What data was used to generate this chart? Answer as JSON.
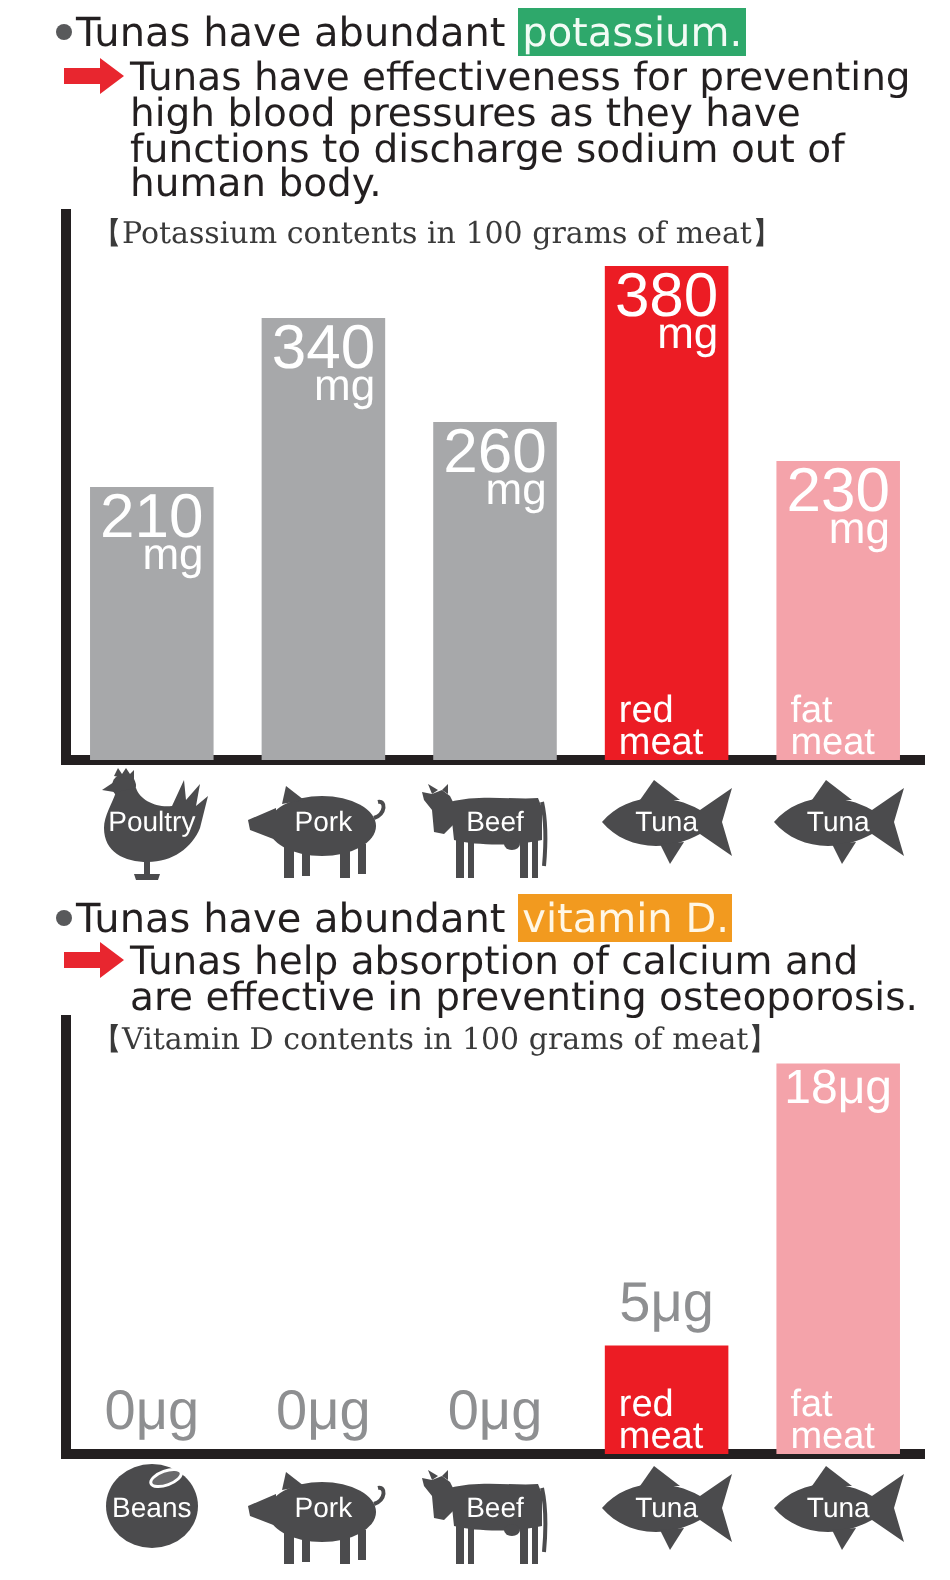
{
  "chart_data": [
    {
      "type": "bar",
      "title": "Tunas have abundant potassium.",
      "subtitle": "Tunas have effectiveness for preventing high blood pressures as they have functions to discharge sodium out of human body.",
      "ylabel": "【Potassium contents in 100 grams of meat】",
      "categories": [
        "Poultry",
        "Pork",
        "Beef",
        "Tuna",
        "Tuna"
      ],
      "values": [
        210,
        340,
        260,
        380,
        230
      ],
      "colors": [
        "#a7a8aa",
        "#a7a8aa",
        "#a7a8aa",
        "#ec1c24",
        "#f4a3aa"
      ],
      "value_labels": [
        "210 mg",
        "340 mg",
        "260 mg",
        "380 mg",
        "230 mg"
      ],
      "annotations": [
        "red meat",
        "fat meat"
      ],
      "ylim": [
        0,
        420
      ],
      "tick_labels": "x"
    },
    {
      "type": "bar",
      "title": "Tunas have abundant vitamin D.",
      "subtitle": "Tunas help absorption of calcium and are effective in preventing osteoporosis.",
      "ylabel": "【Vitamin D contents in 100 grams of meat】",
      "categories": [
        "Beans",
        "Pork",
        "Beef",
        "Tuna",
        "Tuna"
      ],
      "values": [
        0,
        0,
        0,
        5,
        18
      ],
      "colors": [
        "#a7a8aa",
        "#a7a8aa",
        "#a7a8aa",
        "#ec1c24",
        "#f4a3aa"
      ],
      "value_labels": [
        "0μg",
        "0μg",
        "0μg",
        "5μg",
        "18μg"
      ],
      "annotations": [
        "red meat",
        "fat meat"
      ],
      "ylim": [
        0,
        20
      ],
      "tick_labels": "x"
    }
  ]
}
